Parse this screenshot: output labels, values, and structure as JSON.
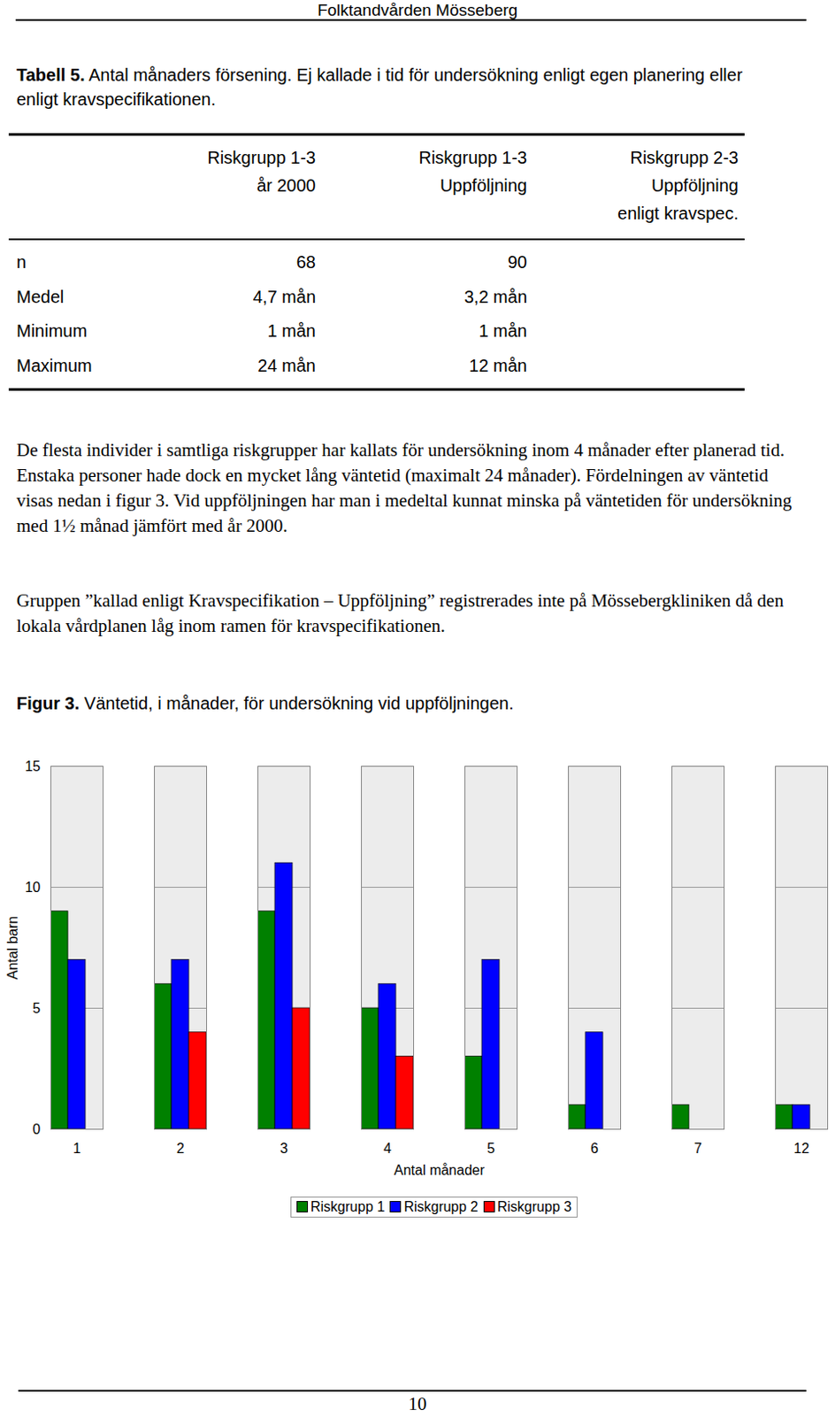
{
  "header": "Folktandvården Mösseberg",
  "table": {
    "title_label": "Tabell 5.",
    "title": "Antal månaders försening. Ej kallade i tid för undersökning enligt egen planering eller enligt kravspecifikationen.",
    "columns": [
      [
        "Riskgrupp 1-3",
        "år 2000"
      ],
      [
        "Riskgrupp 1-3",
        "Uppföljning"
      ],
      [
        "Riskgrupp 2-3",
        "Uppföljning",
        "enligt kravspec."
      ]
    ],
    "rows": [
      [
        "n",
        "68",
        "90"
      ],
      [
        "Medel",
        "4,7 mån",
        "3,2 mån"
      ],
      [
        "Minimum",
        "1 mån",
        "1 mån"
      ],
      [
        "Maximum",
        "24 mån",
        "12 mån"
      ]
    ]
  },
  "paragraphs": [
    "De flesta individer i samtliga riskgrupper har kallats för undersökning inom 4 månader efter planerad tid. Enstaka personer hade dock en mycket lång väntetid (maximalt 24 månader). Fördelningen av väntetid visas nedan i figur 3. Vid uppföljningen har man i medeltal kunnat minska på väntetiden för undersökning med 1½ månad jämfört med år 2000.",
    "Gruppen ”kallad enligt Kravspecifikation – Uppföljning” registrerades inte på Mössebergkliniken då den lokala vårdplanen låg inom ramen för kravspecifikationen."
  ],
  "figure_label": "Figur 3.",
  "figure_title": "Väntetid, i månader, för undersökning vid uppföljningen.",
  "chart_data": {
    "type": "bar",
    "x_label": "Antal månader",
    "y_label": "Antal barn",
    "categories": [
      "1",
      "2",
      "3",
      "4",
      "5",
      "6",
      "7",
      "12"
    ],
    "series": [
      {
        "name": "Riskgrupp 1",
        "color": "#008000",
        "values": [
          9,
          6,
          9,
          5,
          3,
          1,
          1,
          1
        ]
      },
      {
        "name": "Riskgrupp 2",
        "color": "#0000ff",
        "values": [
          7,
          7,
          11,
          6,
          7,
          4,
          0,
          1
        ]
      },
      {
        "name": "Riskgrupp 3",
        "color": "#ff0000",
        "values": [
          0,
          4,
          5,
          3,
          0,
          0,
          0,
          0
        ]
      }
    ],
    "ylim": [
      0,
      15
    ],
    "yticks": [
      0,
      5,
      10,
      15
    ],
    "grid": true,
    "legend": "bottom"
  },
  "page_number": "10"
}
